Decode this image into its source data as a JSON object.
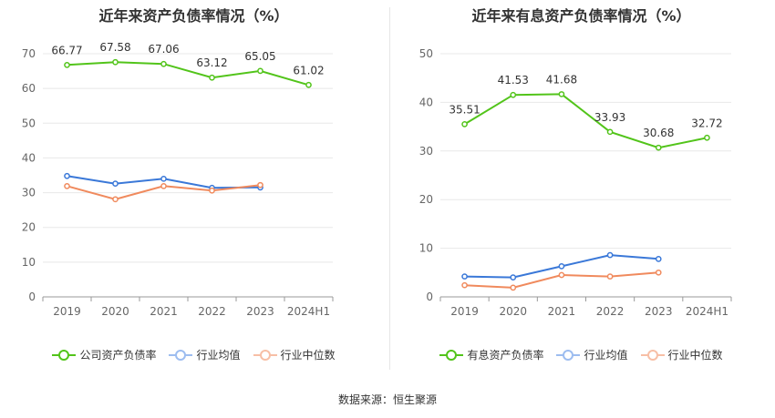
{
  "source": "数据来源：恒生聚源",
  "chart_data": [
    {
      "type": "line",
      "title": "近年来资产负债率情况（%）",
      "categories": [
        "2019",
        "2020",
        "2021",
        "2022",
        "2023",
        "2024H1"
      ],
      "ylim": [
        0,
        70
      ],
      "yticks": [
        0,
        10,
        20,
        30,
        40,
        50,
        60,
        70
      ],
      "grid": true,
      "legend_position": "bottom",
      "series": [
        {
          "name": "公司资产负债率",
          "color": "#52c41a",
          "values": [
            66.77,
            67.58,
            67.06,
            63.12,
            65.05,
            61.02
          ],
          "labels": [
            "66.77",
            "67.58",
            "67.06",
            "63.12",
            "65.05",
            "61.02"
          ]
        },
        {
          "name": "行业均值",
          "color": "#3a78d8",
          "values": [
            34.8,
            32.6,
            34.0,
            31.4,
            31.5,
            null
          ]
        },
        {
          "name": "行业中位数",
          "color": "#f08a5d",
          "values": [
            31.9,
            28.1,
            31.9,
            30.6,
            32.2,
            null
          ]
        }
      ]
    },
    {
      "type": "line",
      "title": "近年来有息资产负债率情况（%）",
      "categories": [
        "2019",
        "2020",
        "2021",
        "2022",
        "2023",
        "2024H1"
      ],
      "ylim": [
        0,
        50
      ],
      "yticks": [
        0,
        10,
        20,
        30,
        40,
        50
      ],
      "grid": true,
      "legend_position": "bottom",
      "series": [
        {
          "name": "有息资产负债率",
          "color": "#52c41a",
          "values": [
            35.51,
            41.53,
            41.68,
            33.93,
            30.68,
            32.72
          ],
          "labels": [
            "35.51",
            "41.53",
            "41.68",
            "33.93",
            "30.68",
            "32.72"
          ]
        },
        {
          "name": "行业均值",
          "color": "#3a78d8",
          "values": [
            4.2,
            4.0,
            6.3,
            8.6,
            7.8,
            null
          ]
        },
        {
          "name": "行业中位数",
          "color": "#f08a5d",
          "values": [
            2.4,
            1.9,
            4.5,
            4.2,
            5.0,
            null
          ]
        }
      ]
    }
  ]
}
